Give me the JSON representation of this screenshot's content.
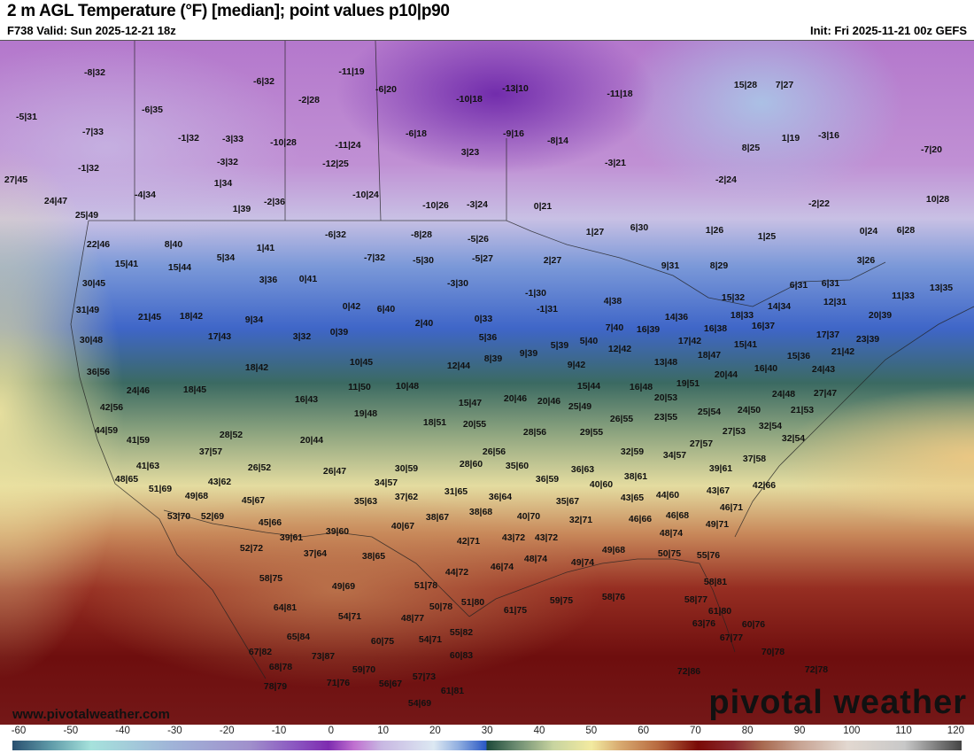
{
  "header": {
    "title": "2 m AGL Temperature (°F) [median]; point values p10|p90",
    "valid": "F738 Valid: Sun 2025-12-21 18z",
    "init": "Init: Fri 2025-11-21 00z GEFS"
  },
  "footer": {
    "url": "www.pivotalweather.com",
    "logo": "pivotal weather"
  },
  "colorbar": {
    "unit": "°F",
    "ticks": [
      "-60",
      "-50",
      "-40",
      "-30",
      "-20",
      "-10",
      "0",
      "10",
      "20",
      "30",
      "40",
      "50",
      "60",
      "70",
      "80",
      "90",
      "100",
      "110",
      "120"
    ]
  },
  "points": [
    "-8|32",
    "-6|32",
    "-11|19",
    "-6|20",
    "-2|28",
    "-10|18",
    "-13|10",
    "-11|18",
    "-5|31",
    "-6|35",
    "-7|33",
    "-1|32",
    "-3|33",
    "-10|28",
    "-11|24",
    "-6|18",
    "-9|16",
    "-8|14",
    "1|19",
    "-3|16",
    "-7|20",
    "-1|32",
    "-3|32",
    "-12|25",
    "3|23",
    "8|25",
    "-3|21",
    "15|28",
    "7|27",
    "27|45",
    "1|34",
    "-4|34",
    "-10|24",
    "-2|24",
    "-2|22",
    "10|28",
    "24|47",
    "1|39",
    "-2|36",
    "-10|26",
    "-3|24",
    "0|21",
    "25|49",
    "1|26",
    "1|25",
    "0|24",
    "6|28",
    "1|27",
    "6|30",
    "-6|32",
    "-8|28",
    "-5|26",
    "22|46",
    "8|40",
    "1|41",
    "-7|32",
    "-5|30",
    "-5|27",
    "2|27",
    "3|26",
    "15|41",
    "15|44",
    "5|34",
    "9|31",
    "8|29",
    "30|45",
    "3|36",
    "0|41",
    "-3|30",
    "6|31",
    "6|31",
    "13|35",
    "-1|30",
    "4|38",
    "15|32",
    "11|33",
    "12|31",
    "31|49",
    "21|45",
    "18|42",
    "9|34",
    "0|42",
    "6|40",
    "-1|31",
    "14|36",
    "18|33",
    "14|34",
    "20|39",
    "2|40",
    "0|33",
    "7|40",
    "16|39",
    "16|38",
    "16|37",
    "17|37",
    "30|48",
    "17|43",
    "3|32",
    "0|39",
    "5|36",
    "17|42",
    "15|41",
    "23|39",
    "5|40",
    "5|39",
    "12|42",
    "18|47",
    "15|36",
    "21|42",
    "9|39",
    "8|39",
    "13|48",
    "10|45",
    "12|44",
    "9|42",
    "18|42",
    "16|40",
    "24|43",
    "36|56",
    "20|44",
    "11|50",
    "10|48",
    "15|44",
    "16|48",
    "19|51",
    "24|46",
    "18|45",
    "24|48",
    "27|47",
    "16|43",
    "15|47",
    "20|46",
    "20|46",
    "25|49",
    "20|53",
    "21|53",
    "42|56",
    "19|48",
    "18|51",
    "20|55",
    "25|54",
    "24|50",
    "26|55",
    "23|55",
    "44|59",
    "28|52",
    "28|56",
    "29|55",
    "27|53",
    "32|54",
    "20|44",
    "32|54",
    "41|59",
    "27|57",
    "32|59",
    "34|57",
    "37|57",
    "26|56",
    "37|58",
    "30|59",
    "28|60",
    "35|60",
    "39|61",
    "41|63",
    "26|52",
    "26|47",
    "36|63",
    "36|59",
    "48|65",
    "43|62",
    "34|57",
    "38|61",
    "42|66",
    "51|69",
    "31|65",
    "36|64",
    "40|60",
    "43|67",
    "49|68",
    "37|62",
    "35|63",
    "45|67",
    "35|67",
    "43|65",
    "44|60",
    "46|71",
    "53|70",
    "52|69",
    "45|66",
    "38|67",
    "38|68",
    "40|70",
    "32|71",
    "46|66",
    "46|68",
    "40|67",
    "49|71",
    "39|61",
    "39|60",
    "42|71",
    "43|72",
    "43|72",
    "52|72",
    "48|74",
    "48|74",
    "37|64",
    "38|65",
    "49|68",
    "50|75",
    "55|76",
    "46|74",
    "49|74",
    "44|72",
    "58|75",
    "58|81",
    "49|69",
    "51|78",
    "51|80",
    "50|78",
    "61|75",
    "59|75",
    "58|76",
    "58|77",
    "64|81",
    "61|80",
    "54|71",
    "48|77",
    "63|76",
    "60|76",
    "65|84",
    "54|71",
    "55|82",
    "60|75",
    "67|77",
    "67|82",
    "73|87",
    "60|83",
    "70|78",
    "68|78",
    "59|70",
    "72|78",
    "57|73",
    "78|79",
    "71|76",
    "56|67",
    "61|81",
    "72|86",
    "54|69"
  ]
}
